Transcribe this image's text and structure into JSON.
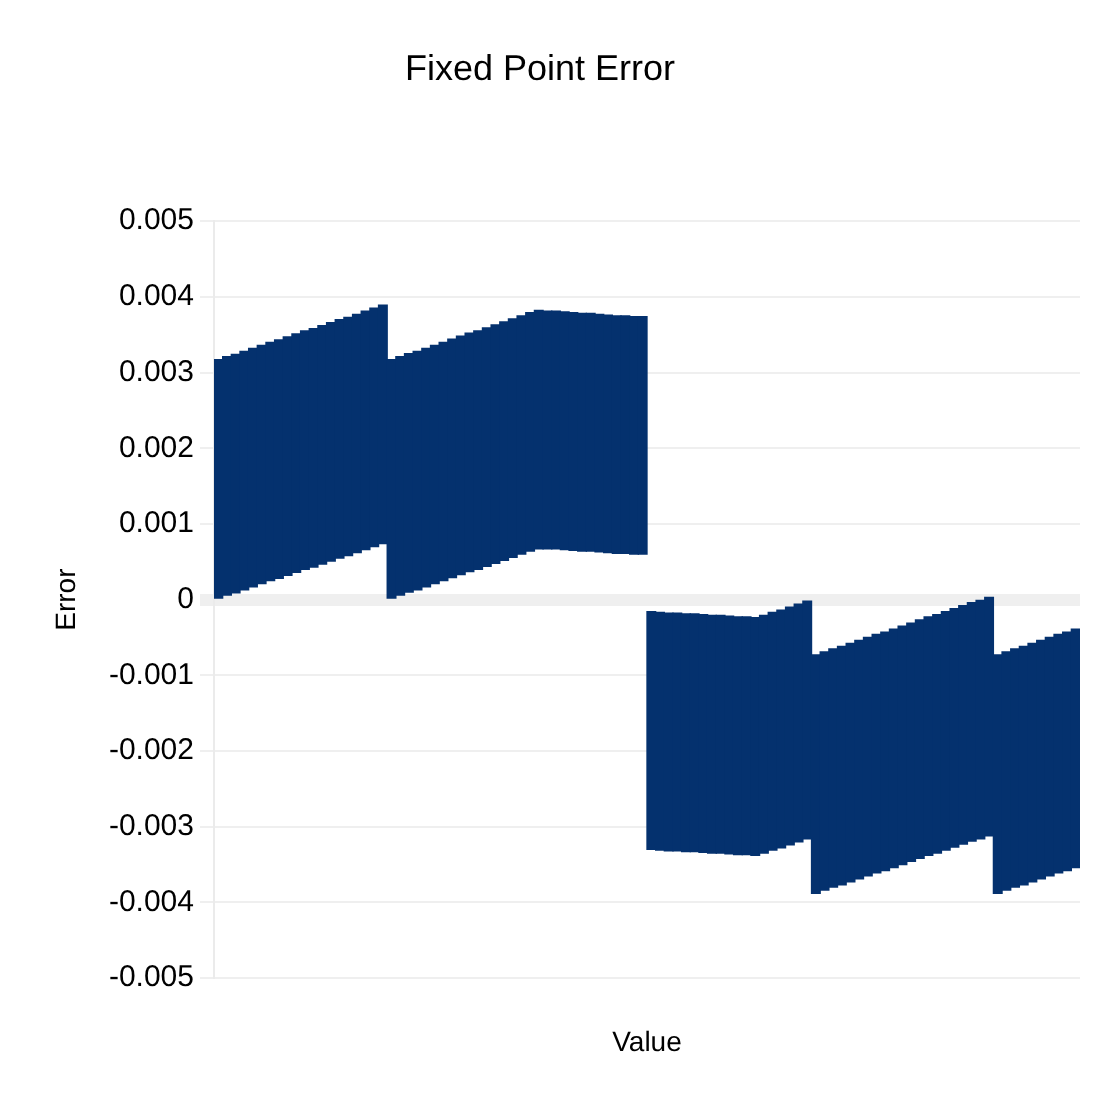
{
  "chart_data": {
    "type": "bar",
    "title": "Fixed Point Error",
    "xlabel": "Value",
    "ylabel": "Error",
    "categories": [
      null,
      null,
      null,
      null,
      null,
      null,
      null,
      null,
      null,
      null,
      null,
      null,
      null,
      null,
      null,
      null,
      null,
      null,
      null,
      null,
      null,
      null,
      null,
      null,
      null,
      null,
      null,
      null,
      null,
      null,
      null,
      null,
      null,
      null,
      null,
      null,
      null,
      null,
      null,
      null,
      null,
      null,
      null,
      null,
      null,
      null,
      null,
      null,
      null,
      null,
      null,
      null,
      null,
      null,
      null,
      null,
      null,
      null,
      null,
      null,
      null,
      null,
      null,
      null,
      null,
      null,
      null,
      null,
      null,
      null,
      null,
      null,
      null,
      null,
      null,
      null,
      null,
      null,
      null,
      null,
      null,
      null,
      null,
      null,
      null,
      null,
      null,
      null,
      null,
      null,
      null,
      null,
      null,
      null,
      null,
      null,
      null,
      null,
      null,
      null
    ],
    "values": [
      0.00315,
      0.00315,
      0.00315,
      0.00315,
      0.00315,
      0.00315,
      0.00315,
      0.00315,
      0.00315,
      0.00315,
      0.00315,
      0.00315,
      0.00315,
      0.00315,
      0.00315,
      0.00315,
      0.00315,
      0.00315,
      0.00315,
      0.00315,
      0.00315,
      0.00315,
      0.00315,
      0.00315,
      0.00315,
      0.00315,
      0.00315,
      0.00315,
      0.00315,
      0.00315,
      0.00315,
      0.00315,
      0.00315,
      0.00315,
      0.00315,
      0.00315,
      0.00315,
      0.00315,
      0.00314,
      0.00314,
      0.00314,
      0.00314,
      0.00314,
      0.00314,
      0.00314,
      0.00314,
      0.00314,
      0.00314,
      0.00314,
      0.00314,
      0.00314,
      0.00314,
      0.00314,
      0.00314,
      0.00314,
      0.00314,
      0.00314,
      0.00314,
      0.00314,
      0.00314,
      0.00314,
      0.00314,
      0.00314,
      0.00314,
      0.00314,
      0.00314,
      0.00314,
      0.00314,
      0.00314,
      0.00315,
      0.00315,
      0.00315,
      0.00315,
      0.00315,
      0.00315,
      0.00315,
      0.00315,
      0.00315,
      0.00315,
      0.00315,
      0.00315,
      0.00315,
      0.00315,
      0.00315,
      0.00315,
      0.00315,
      0.00315,
      0.00315,
      0.00315,
      0.00315,
      0.00315,
      0.00315,
      0.00315,
      0.00315,
      0.00315,
      0.00315,
      0.00315,
      0.00315,
      0.00315,
      0.00315
    ],
    "base": [
      2e-05,
      6e-05,
      9e-05,
      0.00013,
      0.00017,
      0.00021,
      0.00025,
      0.00028,
      0.00032,
      0.00036,
      0.0004,
      0.00043,
      0.00047,
      0.00051,
      0.00055,
      0.00058,
      0.00062,
      0.00066,
      0.0007,
      0.00074,
      2e-05,
      6e-05,
      0.0001,
      0.00013,
      0.00017,
      0.00021,
      0.00025,
      0.00029,
      0.00033,
      0.00037,
      0.0004,
      0.00044,
      0.00048,
      0.00052,
      0.00056,
      0.0006,
      0.00064,
      0.00067,
      0.00067,
      0.00067,
      0.00066,
      0.00065,
      0.00064,
      0.00064,
      0.00063,
      0.00062,
      0.00061,
      0.00061,
      0.0006,
      0.0006,
      -0.0033,
      -0.00331,
      -0.00332,
      -0.00332,
      -0.00333,
      -0.00333,
      -0.00334,
      -0.00335,
      -0.00335,
      -0.00336,
      -0.00337,
      -0.00337,
      -0.00338,
      -0.00335,
      -0.00331,
      -0.00328,
      -0.00324,
      -0.0032,
      -0.00316,
      -0.00388,
      -0.00384,
      -0.0038,
      -0.00377,
      -0.00373,
      -0.00369,
      -0.00365,
      -0.00361,
      -0.00358,
      -0.00354,
      -0.0035,
      -0.00346,
      -0.00342,
      -0.00338,
      -0.00335,
      -0.00331,
      -0.00327,
      -0.00323,
      -0.00319,
      -0.00316,
      -0.00312,
      -0.00388,
      -0.00384,
      -0.0038,
      -0.00377,
      -0.00373,
      -0.00369,
      -0.00365,
      -0.00361,
      -0.00358,
      -0.00354
    ],
    "color": "#04316e",
    "ylim": [
      -0.005,
      0.005
    ],
    "yticks": [
      -0.005,
      -0.004,
      -0.003,
      -0.002,
      -0.001,
      0,
      0.001,
      0.002,
      0.003,
      0.004,
      0.005
    ],
    "grid": "y",
    "tick_labels": "y"
  }
}
